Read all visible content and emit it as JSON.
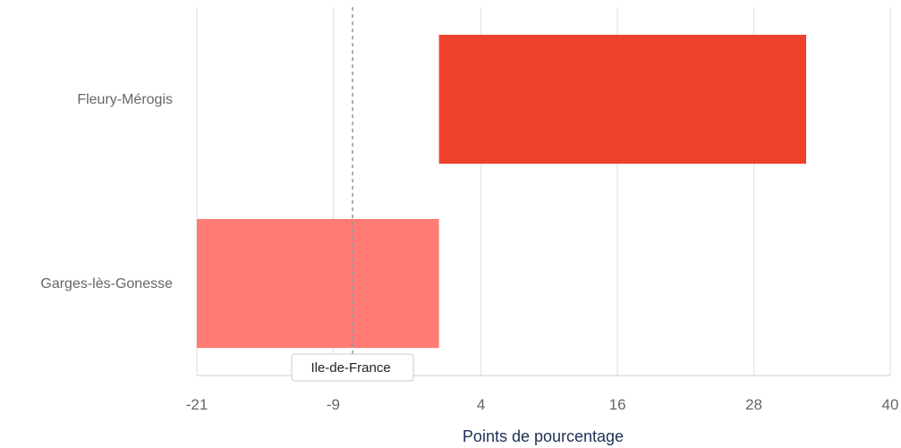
{
  "chart_data": {
    "type": "bar",
    "orientation": "horizontal",
    "categories": [
      "Fleury-Mérogis",
      "Garges-lès-Gonesse"
    ],
    "bars": [
      {
        "category": "Fleury-Mérogis",
        "start": 0.3,
        "end": 32.6,
        "color": "#ee412b"
      },
      {
        "category": "Garges-lès-Gonesse",
        "start": -21,
        "end": 0.3,
        "color": "#ff7b73"
      }
    ],
    "xlim": [
      -21,
      40
    ],
    "xticks": [
      -21,
      -9,
      4,
      16,
      28,
      40
    ],
    "xlabel": "Points de pourcentage",
    "ylabel": "",
    "title": "",
    "grid": "vertical",
    "reference_line": {
      "label": "Ile-de-France",
      "value": -7.3,
      "style": "dashed",
      "color": "#999999"
    }
  }
}
